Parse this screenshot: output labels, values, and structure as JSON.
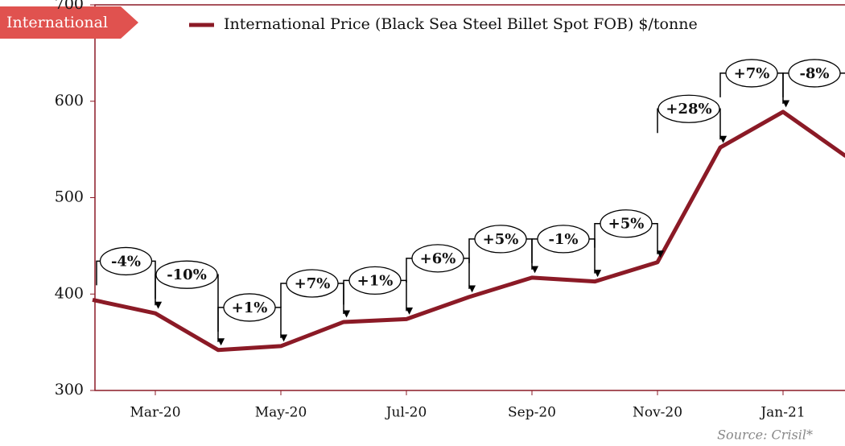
{
  "tag": "International",
  "source": "Source: Crisil*",
  "chart_data": {
    "type": "line",
    "categories": [
      null,
      "Mar-20",
      null,
      "May-20",
      null,
      "Jul-20",
      null,
      "Sep-20",
      null,
      "Nov-20",
      null,
      "Jan-21",
      null
    ],
    "series": [
      {
        "name": "International Price (Black Sea Steel Billet Spot FOB) $/tonne",
        "color": "#8b1a26",
        "values": [
          394,
          380,
          342,
          346,
          371,
          374,
          397,
          417,
          413,
          433,
          552,
          589,
          543
        ]
      }
    ],
    "change_labels": [
      null,
      "-4%",
      "-10%",
      "+1%",
      "+7%",
      "+1%",
      "+6%",
      "+5%",
      "-1%",
      "+5%",
      "+28%",
      "+7%",
      "-8%"
    ],
    "ylim": [
      300,
      700
    ],
    "yticks": [
      300,
      400,
      500,
      600,
      700
    ]
  }
}
